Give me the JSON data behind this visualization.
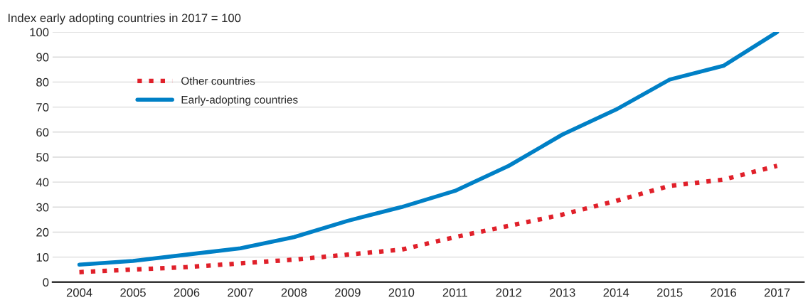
{
  "chart_data": {
    "type": "line",
    "ylabel": "Index early adopting countries in 2017 = 100",
    "categories": [
      "2004",
      "2005",
      "2006",
      "2007",
      "2008",
      "2009",
      "2010",
      "2011",
      "2012",
      "2013",
      "2014",
      "2015",
      "2016",
      "2017"
    ],
    "series": [
      {
        "name": "Other countries",
        "color": "#e0202a",
        "line_style": "dotted",
        "values": [
          4,
          5,
          6,
          7.5,
          9,
          11,
          13,
          18,
          22.5,
          27,
          32.5,
          38.5,
          41,
          46.5
        ]
      },
      {
        "name": "Early-adopting countries",
        "color": "#0080c6",
        "line_style": "solid",
        "values": [
          7,
          8.5,
          11,
          13.5,
          18,
          24.5,
          30,
          36.5,
          46.5,
          59,
          69,
          81,
          86.5,
          100
        ]
      }
    ],
    "ylim": [
      0,
      100
    ],
    "yticks": [
      0,
      10,
      20,
      30,
      40,
      50,
      60,
      70,
      80,
      90,
      100
    ],
    "grid": "y",
    "legend": "top left",
    "marker": "none"
  }
}
